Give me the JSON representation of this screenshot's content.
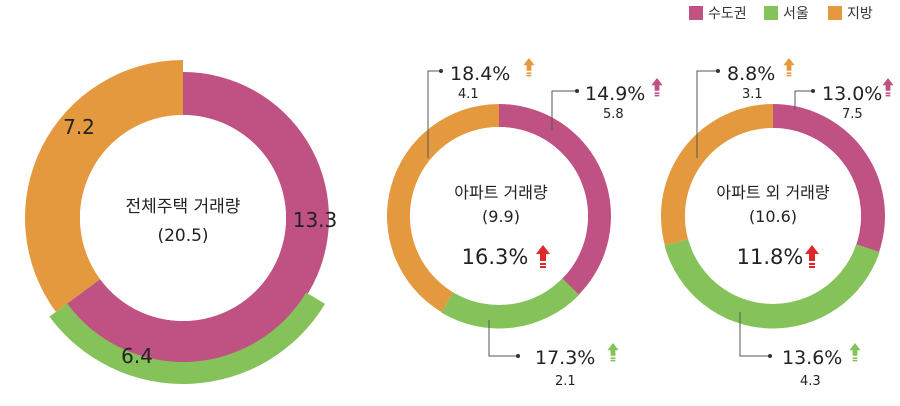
{
  "colors": {
    "capital": "#C05283",
    "seoul": "#86C25A",
    "regional": "#E5993E",
    "increase_arrow": "#E0262B"
  },
  "legend": {
    "placement": "top-right",
    "items": [
      {
        "key": "capital",
        "label": "수도권"
      },
      {
        "key": "seoul",
        "label": "서울"
      },
      {
        "key": "regional",
        "label": "지방"
      }
    ]
  },
  "chart_data": [
    {
      "type": "pie",
      "style": "donut",
      "title": "전체주택 거래량",
      "total_label": "(20.5)",
      "total": 20.5,
      "series": [
        {
          "key": "capital",
          "value": 13.3,
          "label": "13.3"
        },
        {
          "key": "regional",
          "value": 7.2,
          "label": "7.2"
        },
        {
          "key": "seoul",
          "value": 6.4,
          "label": "6.4",
          "note": "subset of 수도권 (outer ring)"
        }
      ]
    },
    {
      "type": "pie",
      "style": "donut",
      "title": "아파트 거래량",
      "total_label": "(9.9)",
      "total": 9.9,
      "total_change_label": "16.3%",
      "total_change_direction": "up",
      "series": [
        {
          "key": "capital",
          "value": 5.8,
          "label": "5.8",
          "change_label": "14.9%",
          "direction": "up"
        },
        {
          "key": "regional",
          "value": 4.1,
          "label": "4.1",
          "change_label": "18.4%",
          "direction": "up"
        },
        {
          "key": "seoul",
          "value": 2.1,
          "label": "2.1",
          "change_label": "17.3%",
          "direction": "up"
        }
      ]
    },
    {
      "type": "pie",
      "style": "donut",
      "title": "아파트 외 거래량",
      "total_label": "(10.6)",
      "total": 10.6,
      "total_change_label": "11.8%",
      "total_change_direction": "up",
      "series": [
        {
          "key": "capital",
          "value": 7.5,
          "label": "7.5",
          "change_label": "13.0%",
          "direction": "up"
        },
        {
          "key": "regional",
          "value": 3.1,
          "label": "3.1",
          "change_label": "8.8%",
          "direction": "up"
        },
        {
          "key": "seoul",
          "value": 4.3,
          "label": "4.3",
          "change_label": "13.6%",
          "direction": "up"
        }
      ]
    }
  ]
}
